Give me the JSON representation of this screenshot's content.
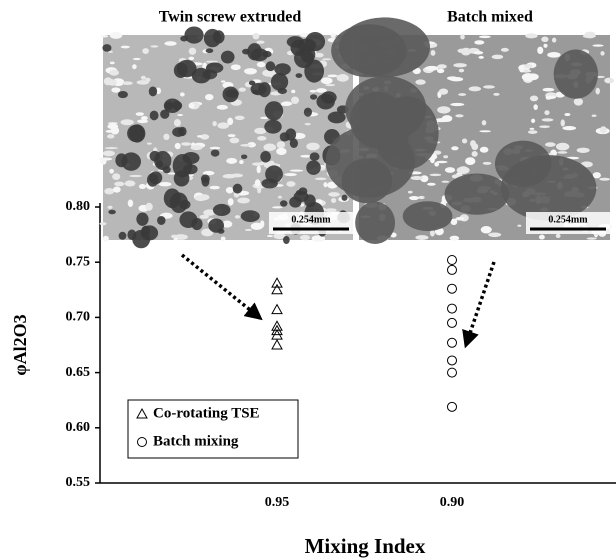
{
  "chart_data": {
    "type": "scatter",
    "panel_titles": [
      "Twin screw extruded",
      "Batch mixed"
    ],
    "scale_bar_labels": [
      "0.254mm",
      "0.254mm"
    ],
    "x_label": "Mixing Index",
    "y_label": "φAl2O3",
    "categories": [
      "0.95",
      "0.90"
    ],
    "ylim": [
      0.55,
      0.8
    ],
    "yticks": [
      0.55,
      {
        "value": 0.6,
        "label": "0.60"
      },
      0.65,
      {
        "value": 0.7,
        "label": "0.70"
      },
      0.75,
      {
        "value": 0.8,
        "label": "0.80"
      }
    ],
    "series": [
      {
        "name": "Co-rotating TSE",
        "marker": "triangle",
        "color": "#000000",
        "values": [
          0.731,
          0.725,
          0.707,
          0.692,
          0.688,
          0.684,
          0.675
        ]
      },
      {
        "name": "Batch mixing",
        "marker": "circle",
        "color": "#000000",
        "values": [
          0.752,
          0.743,
          0.726,
          0.708,
          0.695,
          0.677,
          0.661,
          0.65,
          0.619
        ]
      }
    ]
  }
}
